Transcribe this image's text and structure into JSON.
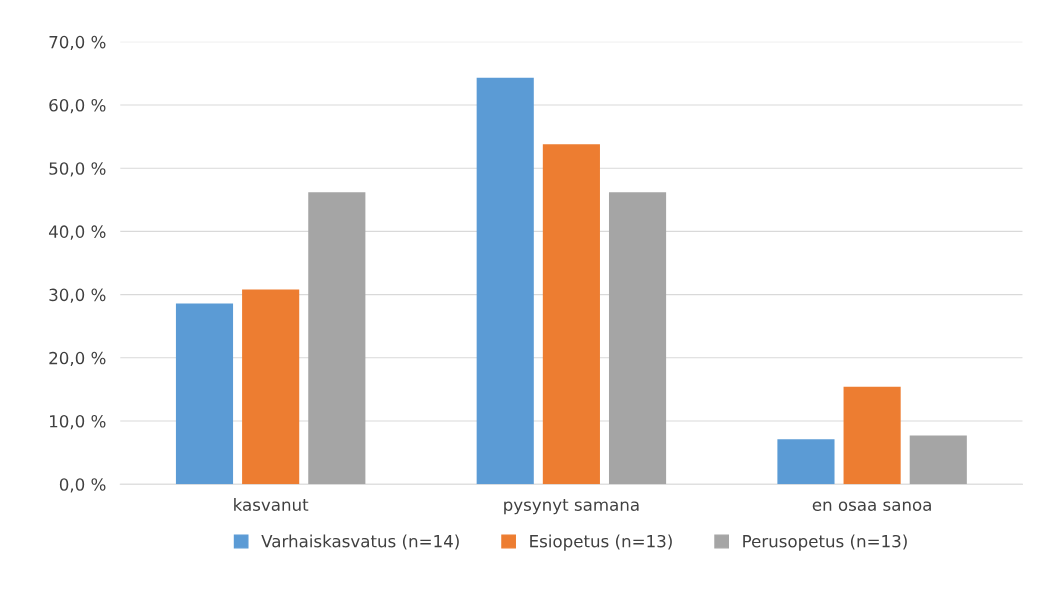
{
  "chart_data": {
    "type": "bar",
    "categories": [
      "kasvanut",
      "pysynyt samana",
      "en osaa sanoa"
    ],
    "series": [
      {
        "name": "Varhaiskasvatus (n=14)",
        "color": "#5b9bd5",
        "values": [
          28.6,
          64.3,
          7.1
        ]
      },
      {
        "name": "Esiopetus (n=13)",
        "color": "#ed7d31",
        "values": [
          30.8,
          53.8,
          15.4
        ]
      },
      {
        "name": "Perusopetus (n=13)",
        "color": "#a5a5a5",
        "values": [
          46.2,
          46.2,
          7.7
        ]
      }
    ],
    "ylim": [
      0,
      70
    ],
    "yticks": [
      {
        "value": 0,
        "label": "0,0 %"
      },
      {
        "value": 10,
        "label": "10,0 %"
      },
      {
        "value": 20,
        "label": "20,0 %"
      },
      {
        "value": 30,
        "label": "30,0 %"
      },
      {
        "value": 40,
        "label": "40,0 %"
      },
      {
        "value": 50,
        "label": "50,0 %"
      },
      {
        "value": 60,
        "label": "60,0 %"
      },
      {
        "value": 70,
        "label": "70,0 %"
      }
    ],
    "grid": "y",
    "legend": "bottom"
  }
}
